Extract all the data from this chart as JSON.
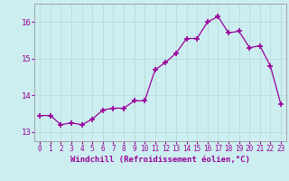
{
  "x": [
    0,
    1,
    2,
    3,
    4,
    5,
    6,
    7,
    8,
    9,
    10,
    11,
    12,
    13,
    14,
    15,
    16,
    17,
    18,
    19,
    20,
    21,
    22,
    23
  ],
  "y": [
    13.45,
    13.45,
    13.2,
    13.25,
    13.2,
    13.35,
    13.6,
    13.65,
    13.65,
    13.85,
    13.85,
    14.7,
    14.9,
    15.15,
    15.55,
    15.55,
    16.0,
    16.15,
    15.7,
    15.75,
    15.3,
    15.35,
    14.8,
    13.75
  ],
  "xlabel": "Windchill (Refroidissement éolien,°C)",
  "ylim": [
    12.75,
    16.5
  ],
  "xlim": [
    -0.5,
    23.5
  ],
  "yticks": [
    13,
    14,
    15,
    16
  ],
  "xticks": [
    0,
    1,
    2,
    3,
    4,
    5,
    6,
    7,
    8,
    9,
    10,
    11,
    12,
    13,
    14,
    15,
    16,
    17,
    18,
    19,
    20,
    21,
    22,
    23
  ],
  "line_color": "#990099",
  "marker": "+",
  "marker_size": 4,
  "marker_lw": 1.2,
  "bg_color": "#cceef0",
  "grid_color": "#bbdddd",
  "tick_color": "#990099",
  "label_color": "#990099",
  "spine_color": "#999999"
}
